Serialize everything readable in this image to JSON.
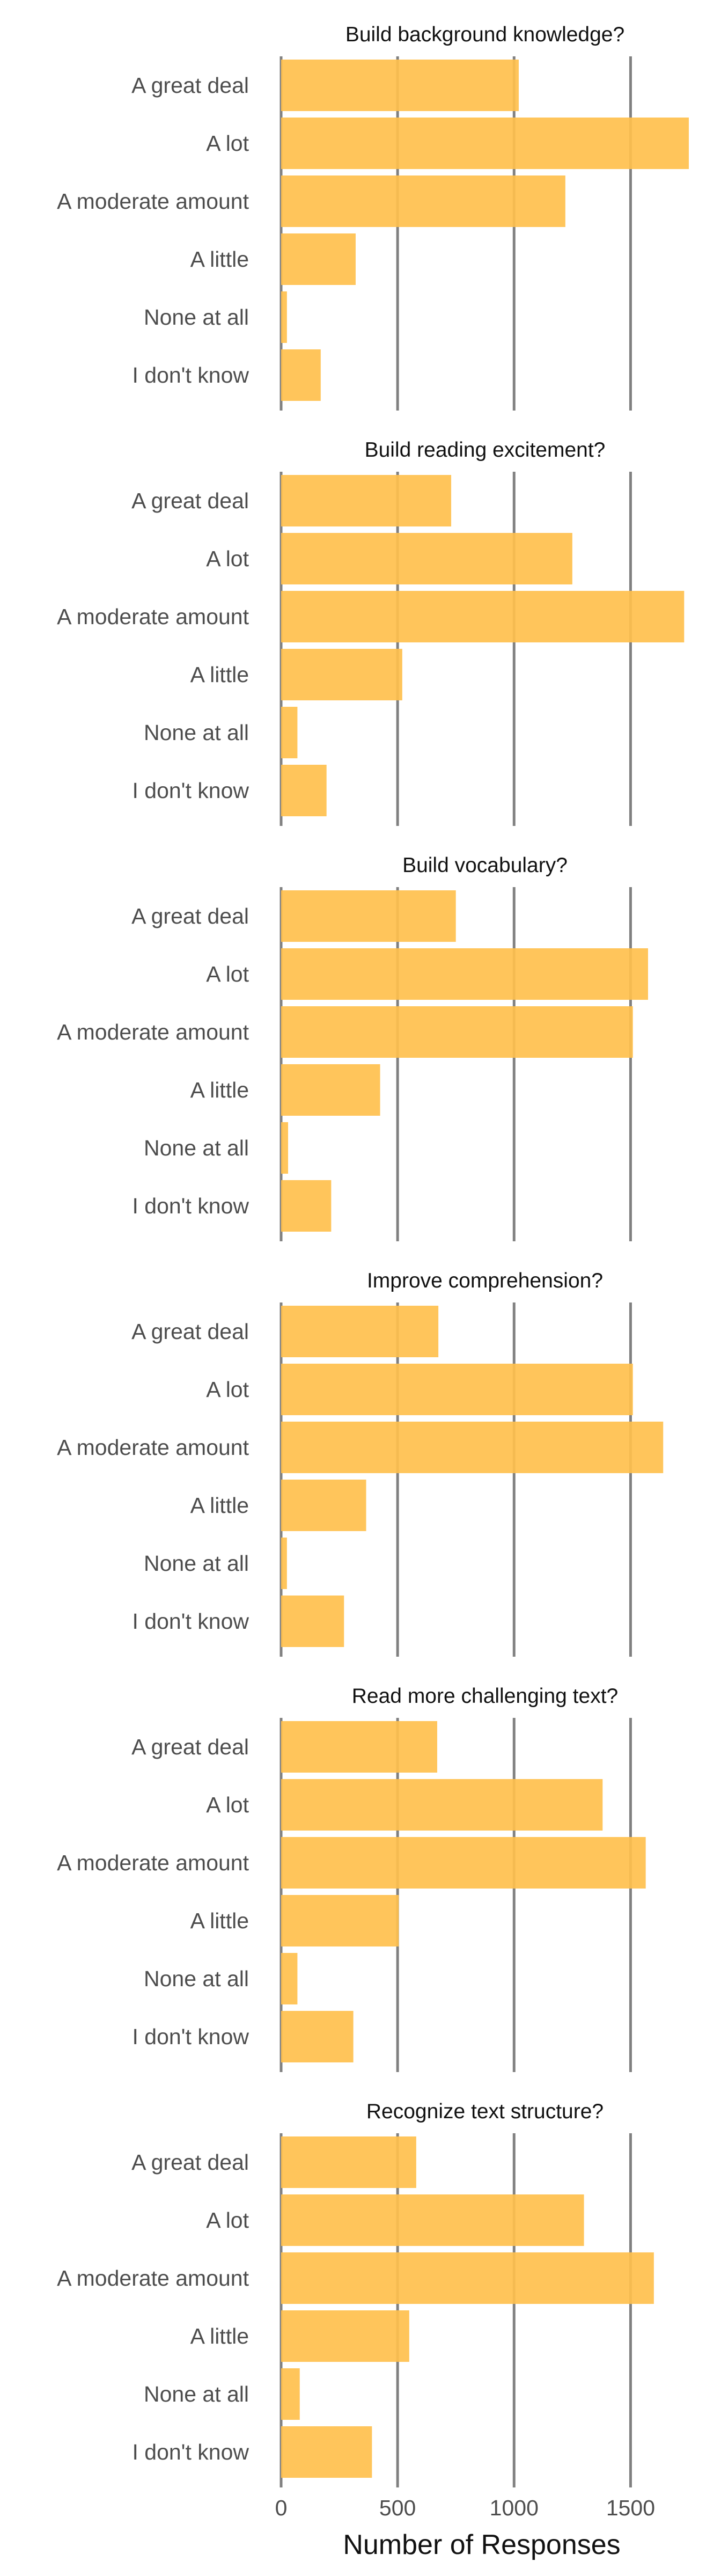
{
  "chart_data": {
    "type": "bar",
    "orientation": "horizontal",
    "xlabel": "Number of Responses",
    "xlim": [
      0,
      1750
    ],
    "x_ticks": [
      0,
      500,
      1000,
      1500
    ],
    "grid": true,
    "bar_color": "#FFC04D",
    "categories": [
      "A great deal",
      "A lot",
      "A moderate amount",
      "A little",
      "None at all",
      "I don't know"
    ],
    "panels": [
      {
        "title": "Build background knowledge?",
        "values": [
          1020,
          1750,
          1220,
          320,
          25,
          170
        ]
      },
      {
        "title": "Build reading excitement?",
        "values": [
          730,
          1250,
          1730,
          520,
          70,
          195
        ]
      },
      {
        "title": "Build vocabulary?",
        "values": [
          750,
          1575,
          1510,
          425,
          30,
          215
        ]
      },
      {
        "title": "Improve comprehension?",
        "values": [
          675,
          1510,
          1640,
          365,
          25,
          270
        ]
      },
      {
        "title": "Read more challenging text?",
        "values": [
          670,
          1380,
          1565,
          505,
          70,
          310
        ]
      },
      {
        "title": "Recognize text structure?",
        "values": [
          580,
          1300,
          1600,
          550,
          80,
          390
        ]
      }
    ]
  }
}
